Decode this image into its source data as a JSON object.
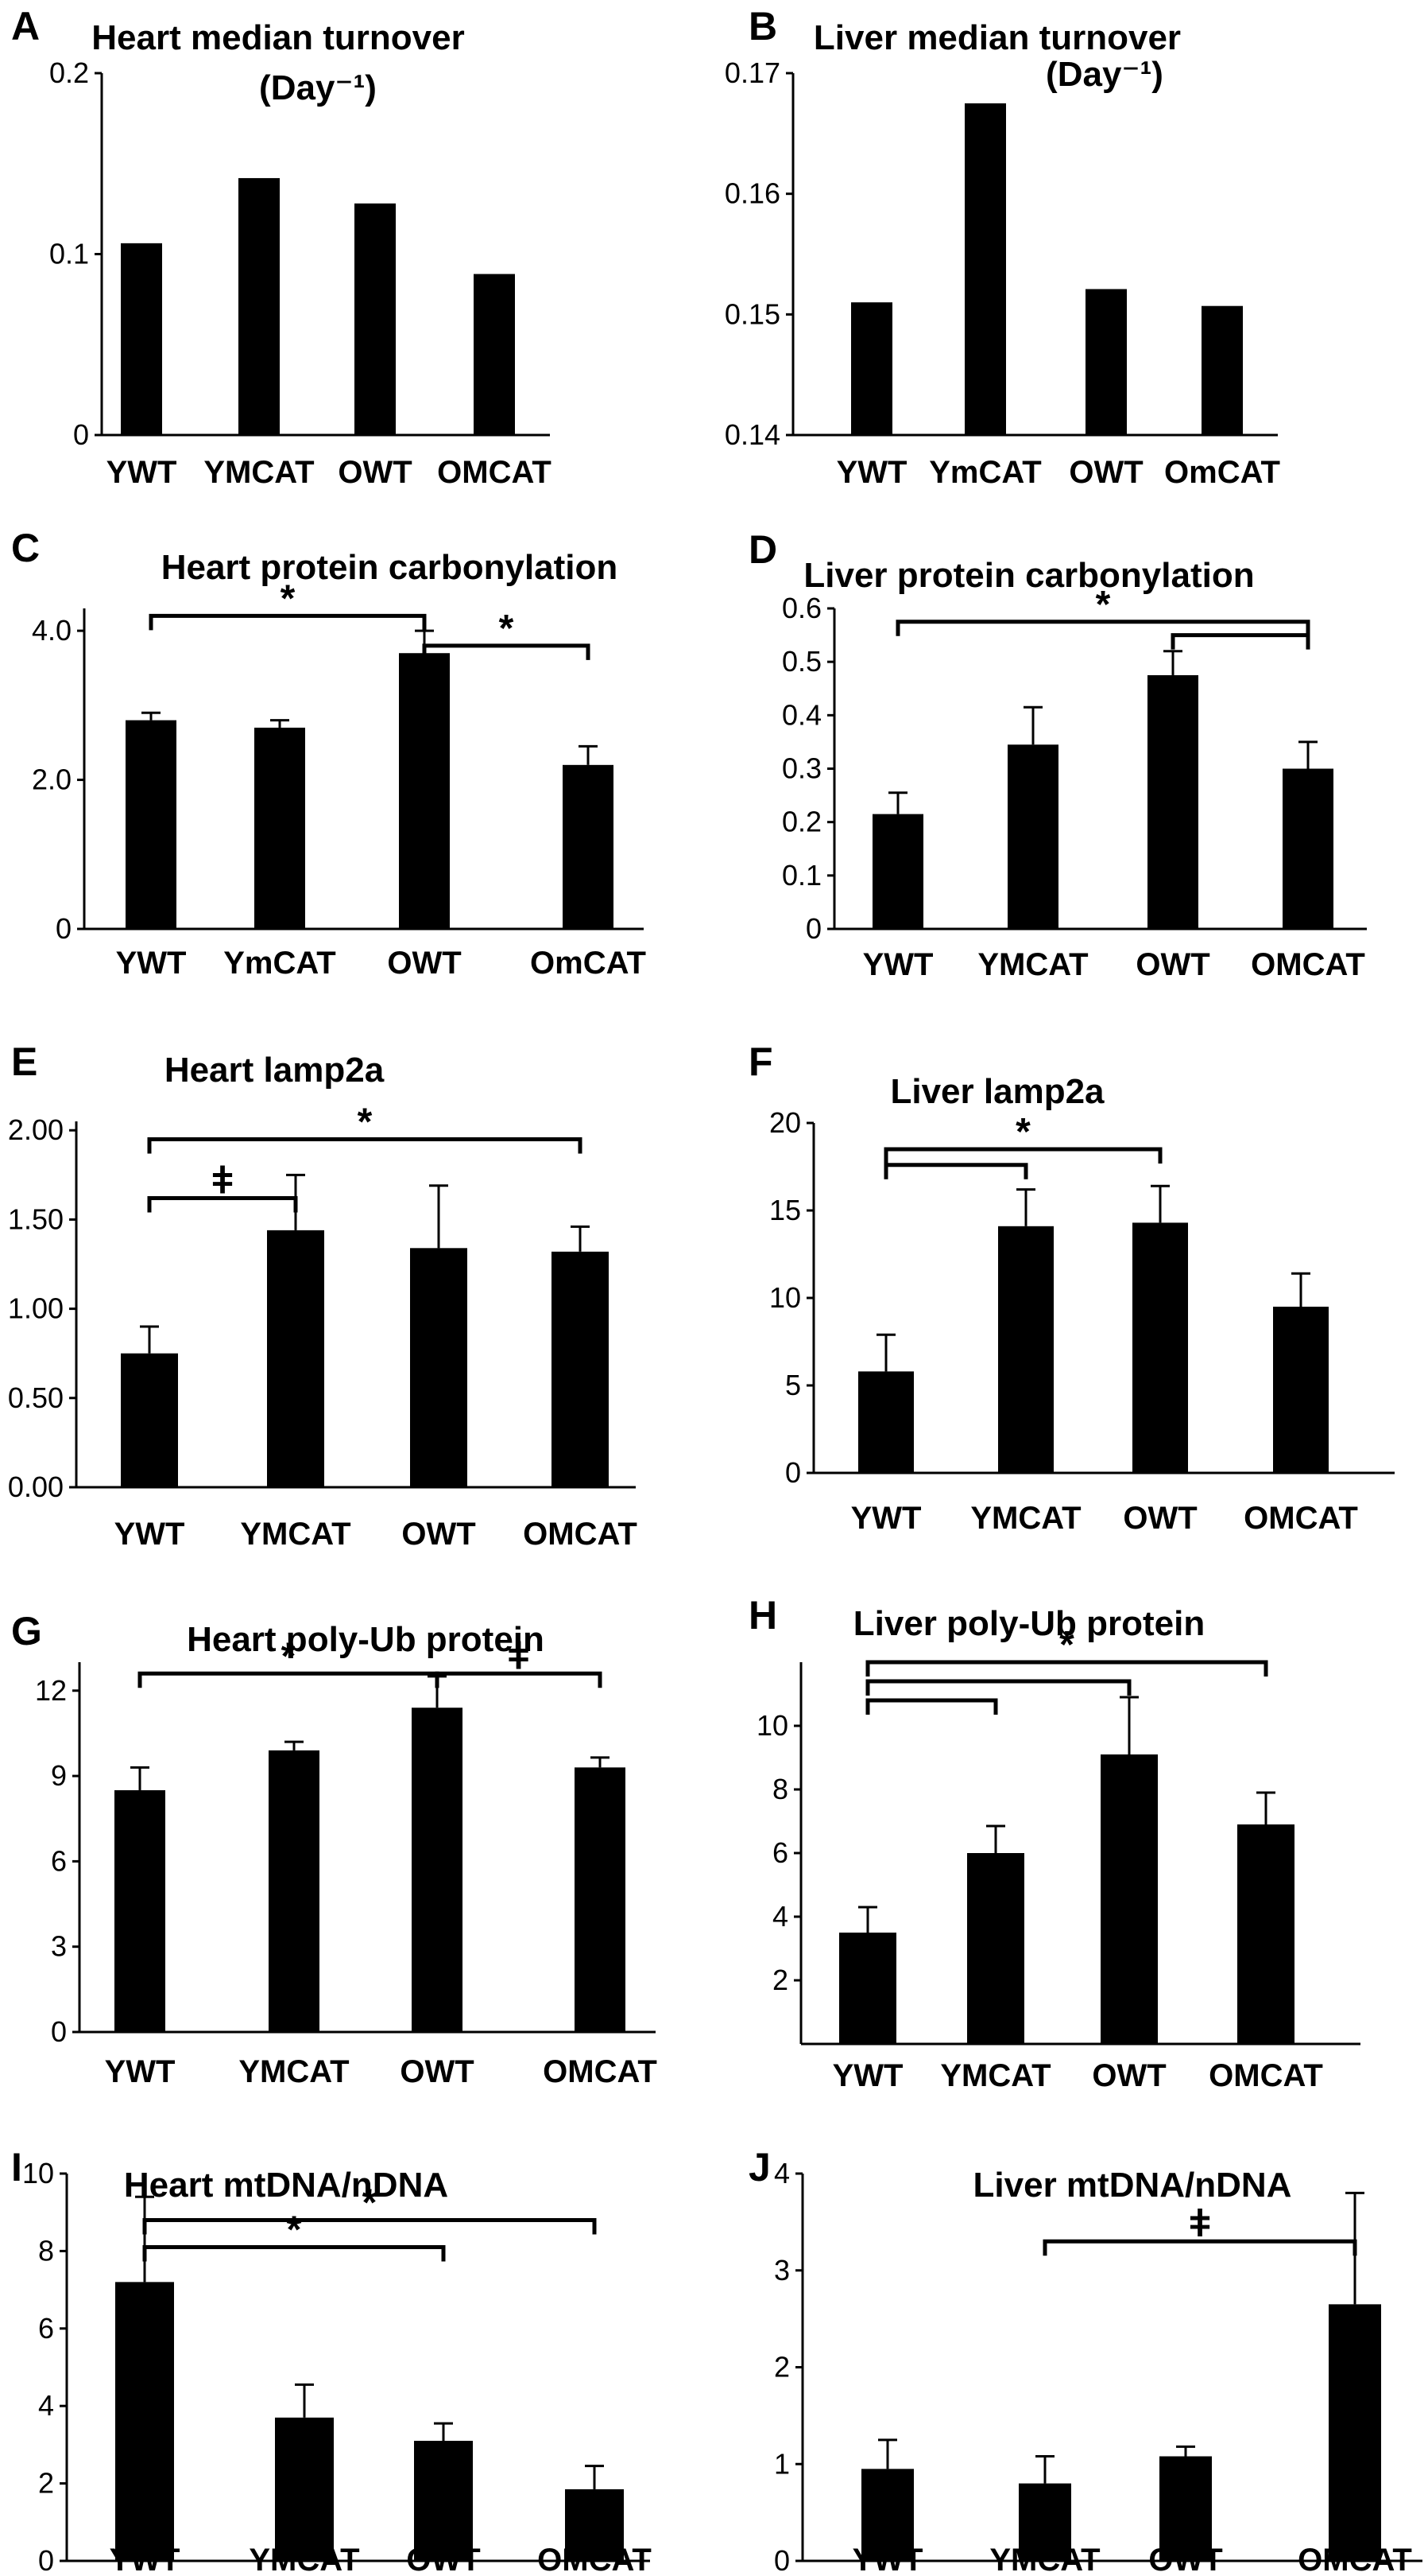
{
  "figure": {
    "panels": [
      {
        "letter": "A",
        "title_lines": [
          "Heart median turnover",
          "(Day⁻¹)"
        ]
      },
      {
        "letter": "B",
        "title_lines": [
          "Liver median turnover",
          "(Day⁻¹)"
        ]
      },
      {
        "letter": "C",
        "title_lines": [
          "Heart protein carbonylation"
        ]
      },
      {
        "letter": "D",
        "title_lines": [
          "Liver protein carbonylation"
        ]
      },
      {
        "letter": "E",
        "title_lines": [
          "Heart lamp2a"
        ]
      },
      {
        "letter": "F",
        "title_lines": [
          "Liver lamp2a"
        ]
      },
      {
        "letter": "G",
        "title_lines": [
          "Heart poly-Ub protein"
        ]
      },
      {
        "letter": "H",
        "title_lines": [
          "Liver poly-Ub protein"
        ]
      },
      {
        "letter": "I",
        "title_lines": [
          "Heart mtDNA/nDNA"
        ]
      },
      {
        "letter": "J",
        "title_lines": [
          "Liver mtDNA/nDNA"
        ]
      }
    ]
  },
  "chart_data": [
    {
      "type": "bar",
      "panel": "A",
      "title": "Heart median turnover (Day⁻¹)",
      "categories": [
        "YWT",
        "YMCAT",
        "OWT",
        "OMCAT"
      ],
      "values": [
        0.106,
        0.142,
        0.128,
        0.089
      ],
      "ylim": [
        0,
        0.2
      ],
      "yticks": [
        0,
        0.1,
        0.2
      ],
      "ytick_labels": [
        "0",
        "0.1",
        "0.2"
      ],
      "significance": []
    },
    {
      "type": "bar",
      "panel": "B",
      "title": "Liver median turnover (Day⁻¹)",
      "categories": [
        "YWT",
        "YmCAT",
        "OWT",
        "OmCAT"
      ],
      "values": [
        0.151,
        0.1675,
        0.1521,
        0.1507
      ],
      "ylim": [
        0.14,
        0.17
      ],
      "yticks": [
        0.14,
        0.15,
        0.16,
        0.17
      ],
      "ytick_labels": [
        "0.14",
        "0.15",
        "0.16",
        "0.17"
      ],
      "significance": []
    },
    {
      "type": "bar",
      "panel": "C",
      "title": "Heart protein carbonylation",
      "categories": [
        "YWT",
        "YmCAT",
        "OWT",
        "OmCAT"
      ],
      "values": [
        2.8,
        2.7,
        3.7,
        2.2
      ],
      "errors": [
        0.1,
        0.1,
        0.3,
        0.25
      ],
      "ylim": [
        0,
        4.3
      ],
      "yticks": [
        0,
        2,
        4
      ],
      "ytick_labels": [
        "0",
        "2.0",
        "4.0"
      ],
      "significance": [
        {
          "from": 0,
          "to": 2,
          "y": 4.2,
          "symbol": "*"
        },
        {
          "from": 2,
          "to": 3,
          "y": 3.8,
          "symbol": "*"
        }
      ]
    },
    {
      "type": "bar",
      "panel": "D",
      "title": "Liver protein carbonylation",
      "categories": [
        "YWT",
        "YMCAT",
        "OWT",
        "OMCAT"
      ],
      "values": [
        0.215,
        0.345,
        0.475,
        0.3
      ],
      "errors": [
        0.04,
        0.07,
        0.045,
        0.05
      ],
      "ylim": [
        0,
        0.6
      ],
      "yticks": [
        0,
        0.1,
        0.2,
        0.3,
        0.4,
        0.5,
        0.6
      ],
      "ytick_labels": [
        "0",
        "0.1",
        "0.2",
        "0.3",
        "0.4",
        "0.5",
        "0.6"
      ],
      "significance": [
        {
          "from": 0,
          "to": 3,
          "y": 0.575,
          "symbol": "*"
        },
        {
          "from": 2,
          "to": 3,
          "y": 0.55,
          "symbol": ""
        }
      ]
    },
    {
      "type": "bar",
      "panel": "E",
      "title": "Heart lamp2a",
      "categories": [
        "YWT",
        "YMCAT",
        "OWT",
        "OMCAT"
      ],
      "values": [
        0.75,
        1.44,
        1.34,
        1.32
      ],
      "errors": [
        0.15,
        0.31,
        0.35,
        0.14
      ],
      "ylim": [
        0,
        2.05
      ],
      "yticks": [
        0,
        0.5,
        1,
        1.5,
        2
      ],
      "ytick_labels": [
        "0.00",
        "0.50",
        "1.00",
        "1.50",
        "2.00"
      ],
      "significance": [
        {
          "from": 0,
          "to": 3,
          "y": 1.95,
          "symbol": "*"
        },
        {
          "from": 0,
          "to": 1,
          "y": 1.62,
          "symbol": "ǂ"
        }
      ]
    },
    {
      "type": "bar",
      "panel": "F",
      "title": "Liver lamp2a",
      "categories": [
        "YWT",
        "YMCAT",
        "OWT",
        "OMCAT"
      ],
      "values": [
        5.8,
        14.1,
        14.3,
        9.5
      ],
      "errors": [
        2.1,
        2.1,
        2.1,
        1.9
      ],
      "ylim": [
        0,
        20
      ],
      "yticks": [
        0,
        5,
        10,
        15,
        20
      ],
      "ytick_labels": [
        "0",
        "5",
        "10",
        "15",
        "20"
      ],
      "significance": [
        {
          "from": 0,
          "to": 2,
          "y": 18.5,
          "symbol": "*"
        },
        {
          "from": 0,
          "to": 1,
          "y": 17.6,
          "symbol": ""
        }
      ]
    },
    {
      "type": "bar",
      "panel": "G",
      "title": "Heart poly-Ub protein",
      "categories": [
        "YWT",
        "YMCAT",
        "OWT",
        "OMCAT"
      ],
      "values": [
        8.5,
        9.9,
        11.4,
        9.3
      ],
      "errors": [
        0.8,
        0.3,
        1.1,
        0.35
      ],
      "ylim": [
        0,
        13
      ],
      "yticks": [
        0,
        3,
        6,
        9,
        12
      ],
      "ytick_labels": [
        "0",
        "3",
        "6",
        "9",
        "12"
      ],
      "significance": [
        {
          "from": 0,
          "to": 2,
          "y": 12.6,
          "symbol": "*"
        },
        {
          "from": 2,
          "to": 3,
          "y": 12.6,
          "symbol": "ǂ"
        }
      ]
    },
    {
      "type": "bar",
      "panel": "H",
      "title": "Liver poly-Ub protein",
      "categories": [
        "YWT",
        "YMCAT",
        "OWT",
        "OMCAT"
      ],
      "values": [
        3.5,
        6.0,
        9.1,
        6.9
      ],
      "errors": [
        0.8,
        0.85,
        1.8,
        1.0
      ],
      "ylim": [
        0,
        12
      ],
      "yticks": [
        2,
        4,
        6,
        8,
        10
      ],
      "ytick_labels": [
        "2",
        "4",
        "6",
        "8",
        "10"
      ],
      "significance": [
        {
          "from": 0,
          "to": 3,
          "y": 12.0,
          "symbol": "*"
        },
        {
          "from": 0,
          "to": 2,
          "y": 11.4,
          "symbol": ""
        },
        {
          "from": 0,
          "to": 1,
          "y": 10.8,
          "symbol": ""
        }
      ]
    },
    {
      "type": "bar",
      "panel": "I",
      "title": "Heart mtDNA/nDNA",
      "categories": [
        "YWT",
        "YMCAT",
        "OWT",
        "OMCAT"
      ],
      "values": [
        7.2,
        3.7,
        3.1,
        1.85
      ],
      "errors": [
        2.2,
        0.85,
        0.45,
        0.6
      ],
      "ylim": [
        0,
        10
      ],
      "yticks": [
        0,
        2,
        4,
        6,
        8,
        10
      ],
      "ytick_labels": [
        "0",
        "2",
        "4",
        "6",
        "8",
        "10"
      ],
      "significance": [
        {
          "from": 0,
          "to": 3,
          "y": 8.8,
          "symbol": "*"
        },
        {
          "from": 0,
          "to": 2,
          "y": 8.1,
          "symbol": "*"
        }
      ]
    },
    {
      "type": "bar",
      "panel": "J",
      "title": "Liver mtDNA/nDNA",
      "categories": [
        "YWT",
        "YMCAT",
        "OWT",
        "OMCAT"
      ],
      "values": [
        0.95,
        0.8,
        1.08,
        2.65
      ],
      "errors": [
        0.3,
        0.28,
        0.1,
        1.15
      ],
      "ylim": [
        0,
        4
      ],
      "yticks": [
        0,
        1,
        2,
        3,
        4
      ],
      "ytick_labels": [
        "0",
        "1",
        "2",
        "3",
        "4"
      ],
      "significance": [
        {
          "from": 1,
          "to": 3,
          "y": 3.3,
          "symbol": "ǂ"
        }
      ]
    }
  ]
}
